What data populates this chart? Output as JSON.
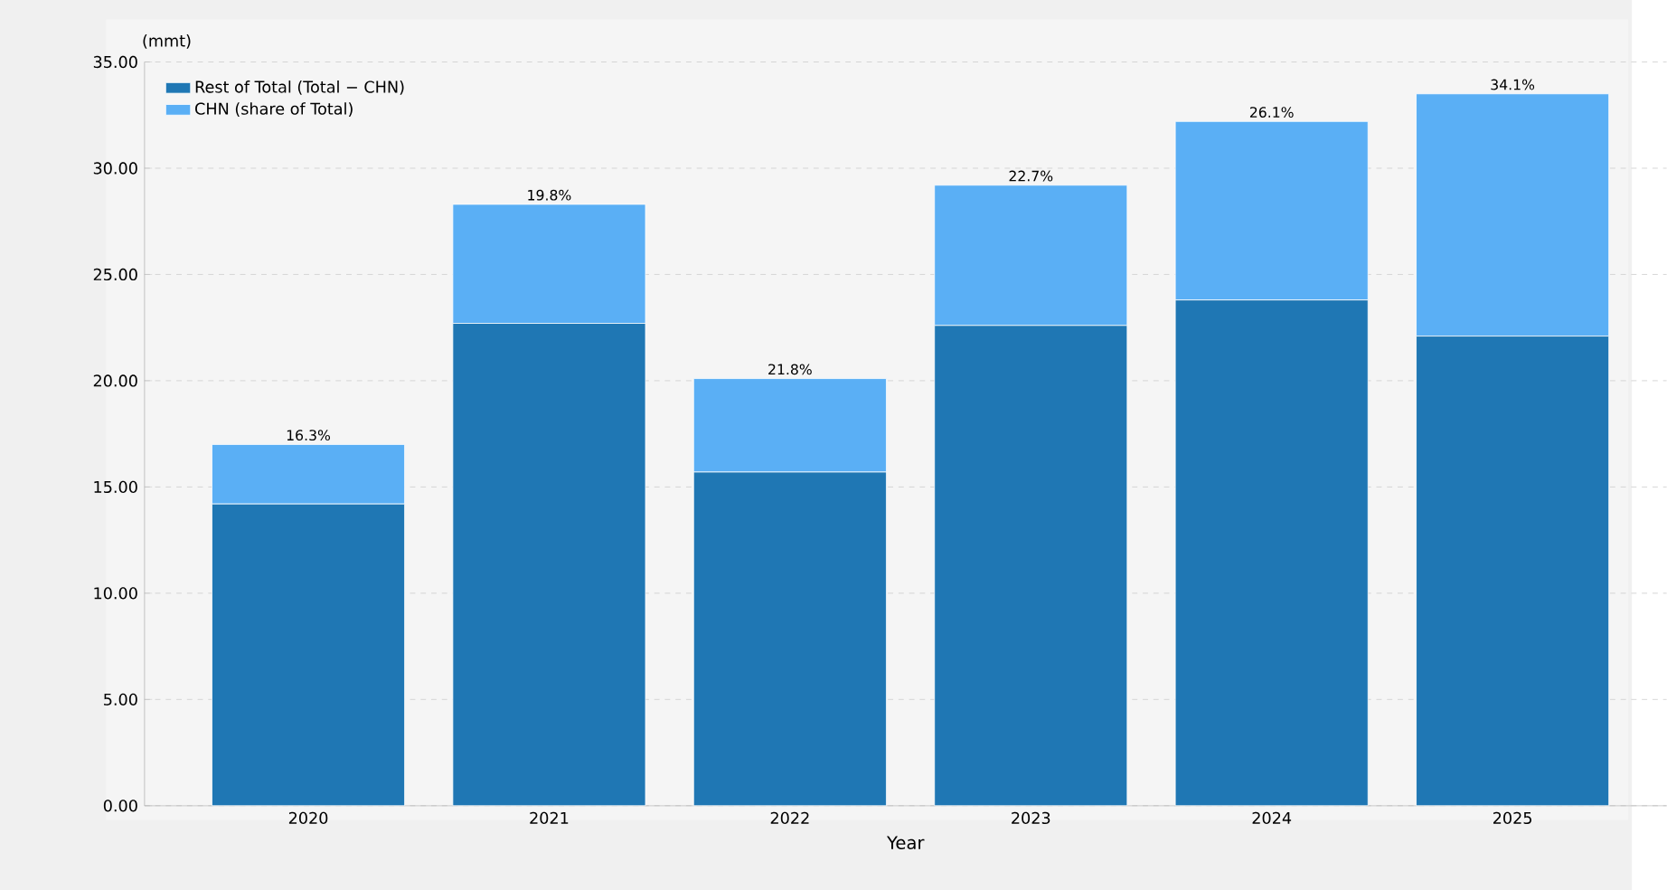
{
  "chart_data": {
    "type": "bar",
    "stacked": true,
    "xlabel": "Year",
    "ylabel": "(mmt)",
    "categories": [
      "2020",
      "2021",
      "2022",
      "2023",
      "2024",
      "2025"
    ],
    "series": [
      {
        "name": "Rest of Total (Total − CHN)",
        "color": "#1f77b4",
        "values": [
          14.2,
          22.7,
          15.7,
          22.6,
          23.8,
          22.1
        ]
      },
      {
        "name": "CHN (share of Total)",
        "color": "#5aaff5",
        "values": [
          2.8,
          5.6,
          4.4,
          6.6,
          8.4,
          11.4
        ]
      }
    ],
    "annotations": [
      "16.3%",
      "19.8%",
      "21.8%",
      "22.7%",
      "26.1%",
      "34.1%"
    ],
    "ylim": [
      0,
      35
    ],
    "yticks": [
      {
        "value": 0,
        "label": "0.00"
      },
      {
        "value": 5,
        "label": "5.00"
      },
      {
        "value": 10,
        "label": "10.00"
      },
      {
        "value": 15,
        "label": "15.00"
      },
      {
        "value": 20,
        "label": "20.00"
      },
      {
        "value": 25,
        "label": "25.00"
      },
      {
        "value": 30,
        "label": "30.00"
      },
      {
        "value": 35,
        "label": "35.00"
      }
    ],
    "grid": "y",
    "legend": "top left"
  }
}
